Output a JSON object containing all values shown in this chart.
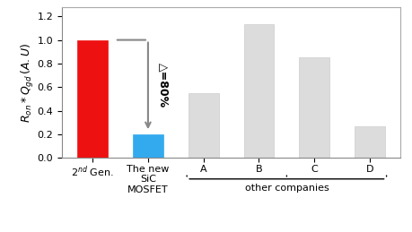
{
  "categories": [
    "2$^{nd}$ Gen.",
    "The new\nSiC\nMOSFET",
    "A",
    "B",
    "C",
    "D"
  ],
  "values": [
    1.0,
    0.2,
    0.55,
    1.13,
    0.85,
    0.265
  ],
  "bar_colors": [
    "#ee1111",
    "#33aaee",
    "#dcdcdc",
    "#dcdcdc",
    "#dcdcdc",
    "#dcdcdc"
  ],
  "bar_edge_colors": [
    "#ee1111",
    "#33aaee",
    "#cccccc",
    "#cccccc",
    "#cccccc",
    "#cccccc"
  ],
  "ylabel": "$R_{on} * Q_{gd}\\,(A.U)$",
  "ylim": [
    0,
    1.28
  ],
  "yticks": [
    0.0,
    0.2,
    0.4,
    0.6,
    0.8,
    1.0,
    1.2
  ],
  "bracket_label": "other companies",
  "arrow_label": "△=80%",
  "background_color": "#ffffff",
  "tick_fontsize": 8,
  "label_fontsize": 9,
  "bar_width": 0.55
}
